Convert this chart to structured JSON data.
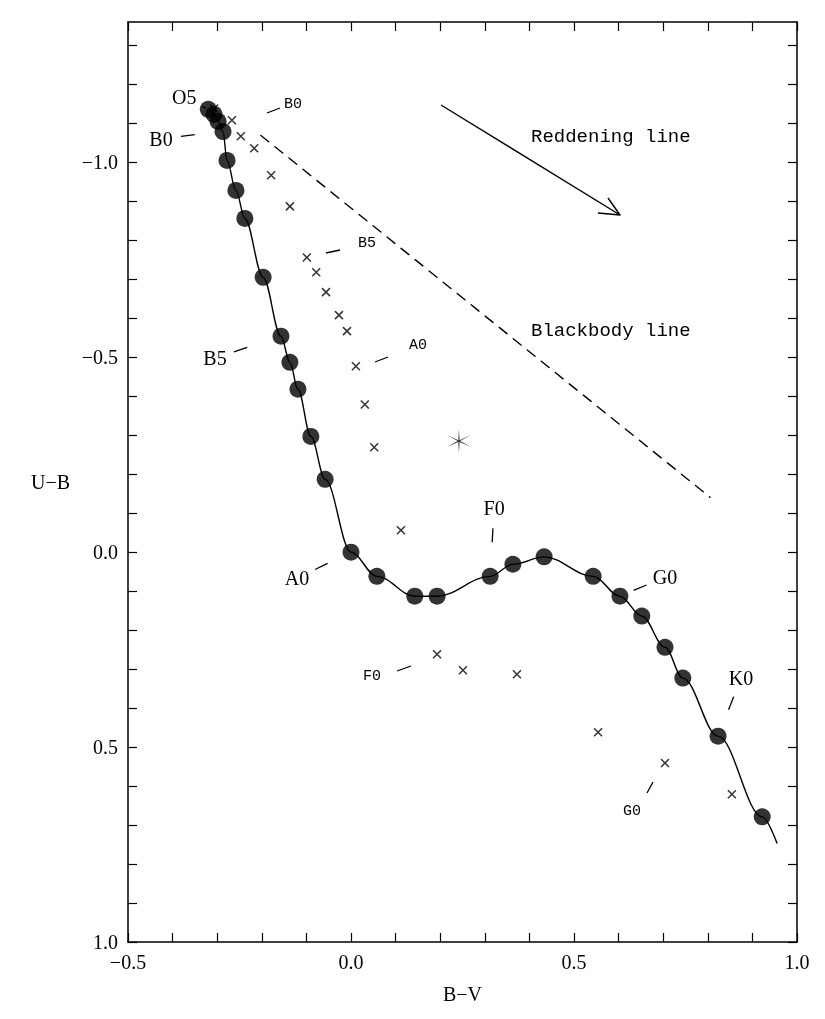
{
  "chart_data": {
    "type": "scatter",
    "xlabel": "B−V",
    "ylabel": "U−B",
    "xlim": [
      -0.5,
      1.0
    ],
    "xticks": [
      {
        "value": -0.5,
        "label": "−0.5"
      },
      {
        "value": -0.4,
        "label": null
      },
      {
        "value": -0.3,
        "label": null
      },
      {
        "value": -0.2,
        "label": null
      },
      {
        "value": -0.1,
        "label": null
      },
      {
        "value": 0,
        "label": "0.0"
      },
      {
        "value": 0.1,
        "label": null
      },
      {
        "value": 0.2,
        "label": null
      },
      {
        "value": 0.3,
        "label": null
      },
      {
        "value": 0.4,
        "label": null
      },
      {
        "value": 0.5,
        "label": "0.5"
      },
      {
        "value": 0.6,
        "label": null
      },
      {
        "value": 0.7,
        "label": null
      },
      {
        "value": 0.8,
        "label": null
      },
      {
        "value": 0.9,
        "label": null
      },
      {
        "value": 1.0,
        "label": "1.0"
      }
    ],
    "ylim": [
      1.0,
      -1.36
    ],
    "yticks": [
      {
        "value": -1.3,
        "label": null
      },
      {
        "value": -1.2,
        "label": null
      },
      {
        "value": -1.1,
        "label": null
      },
      {
        "value": -1.0,
        "label": "−1.0"
      },
      {
        "value": -0.9,
        "label": null
      },
      {
        "value": -0.8,
        "label": null
      },
      {
        "value": -0.7,
        "label": null
      },
      {
        "value": -0.6,
        "label": null
      },
      {
        "value": -0.5,
        "label": "−0.5"
      },
      {
        "value": -0.4,
        "label": null
      },
      {
        "value": -0.3,
        "label": null
      },
      {
        "value": -0.2,
        "label": null
      },
      {
        "value": -0.1,
        "label": null
      },
      {
        "value": 0,
        "label": "0.0"
      },
      {
        "value": 0.1,
        "label": null
      },
      {
        "value": 0.2,
        "label": null
      },
      {
        "value": 0.3,
        "label": null
      },
      {
        "value": 0.4,
        "label": null
      },
      {
        "value": 0.5,
        "label": "0.5"
      },
      {
        "value": 0.6,
        "label": null
      },
      {
        "value": 0.7,
        "label": null
      },
      {
        "value": 0.8,
        "label": null
      },
      {
        "value": 0.9,
        "label": null
      },
      {
        "value": 1.0,
        "label": "1.0"
      }
    ],
    "grid": false,
    "series": [
      {
        "type": "line",
        "color": "#000000",
        "marker": "none",
        "line_style": "solid",
        "x": [
          -0.32,
          -0.307,
          -0.298,
          -0.287,
          -0.278,
          -0.258,
          -0.238,
          -0.197,
          -0.157,
          -0.137,
          -0.119,
          -0.09,
          -0.058,
          0.0,
          0.058,
          0.143,
          0.193,
          0.312,
          0.363,
          0.433,
          0.543,
          0.603,
          0.652,
          0.704,
          0.744,
          0.823,
          0.922,
          0.955
        ],
        "values": [
          -1.136,
          -1.123,
          -1.105,
          -1.079,
          -1.005,
          -0.928,
          -0.856,
          -0.705,
          -0.554,
          -0.487,
          -0.418,
          -0.297,
          -0.187,
          0.0,
          0.062,
          0.113,
          0.113,
          0.062,
          0.031,
          0.012,
          0.062,
          0.113,
          0.164,
          0.244,
          0.323,
          0.472,
          0.679,
          0.746
        ]
      },
      {
        "color": "#000000",
        "marker": "circle",
        "x": [
          -0.32,
          -0.307,
          -0.298,
          -0.287,
          -0.278,
          -0.258,
          -0.238,
          -0.197,
          -0.157,
          -0.137,
          -0.119,
          -0.09,
          -0.058,
          0.0,
          0.058,
          0.143,
          0.193,
          0.312,
          0.363,
          0.433,
          0.543,
          0.603,
          0.652,
          0.704,
          0.744,
          0.823,
          0.922
        ],
        "values": [
          -1.136,
          -1.123,
          -1.105,
          -1.079,
          -1.005,
          -0.928,
          -0.856,
          -0.705,
          -0.554,
          -0.487,
          -0.418,
          -0.297,
          -0.187,
          0.0,
          0.062,
          0.113,
          0.113,
          0.062,
          0.031,
          0.012,
          0.062,
          0.113,
          0.164,
          0.244,
          0.323,
          0.472,
          0.679
        ]
      },
      {
        "color": "#000000",
        "marker": "cross",
        "x": [
          -0.307,
          -0.267,
          -0.247,
          -0.217,
          -0.179,
          -0.137,
          -0.099,
          -0.078,
          -0.056,
          -0.027,
          -0.009,
          0.011,
          0.031,
          0.052,
          0.112,
          0.193,
          0.251,
          0.372,
          0.554,
          0.704,
          0.854
        ],
        "values": [
          -1.138,
          -1.108,
          -1.067,
          -1.036,
          -0.967,
          -0.887,
          -0.756,
          -0.718,
          -0.667,
          -0.608,
          -0.567,
          -0.477,
          -0.379,
          -0.269,
          -0.056,
          0.262,
          0.303,
          0.313,
          0.462,
          0.541,
          0.621
        ]
      },
      {
        "color": "#000000",
        "x": [
          0.242
        ],
        "values": [
          -0.285
        ]
      },
      {
        "type": "line",
        "color": "#000000",
        "marker": "none",
        "line_style": "dashed",
        "x": [
          -0.202,
          0.805
        ],
        "values": [
          -1.069,
          -0.141
        ]
      }
    ],
    "annotations": [
      {
        "text": "O5",
        "x": -0.32,
        "y": -1.136
      },
      "B0",
      {
        "text": "B0",
        "x": -0.287,
        "y": -1.079
      },
      "B5",
      "A0",
      {
        "text": "B5",
        "x": -0.157,
        "y": -0.554
      },
      {
        "text": "A0",
        "x": 0.0,
        "y": 0.0
      },
      {
        "text": "F0",
        "x": 0.312,
        "y": 0.062
      },
      {
        "text": "G0",
        "x": 0.603,
        "y": 0.113
      },
      "F0",
      {
        "text": "K0",
        "x": 0.823,
        "y": 0.472
      },
      "G0",
      "Reddening line",
      "Blackbody line"
    ]
  }
}
